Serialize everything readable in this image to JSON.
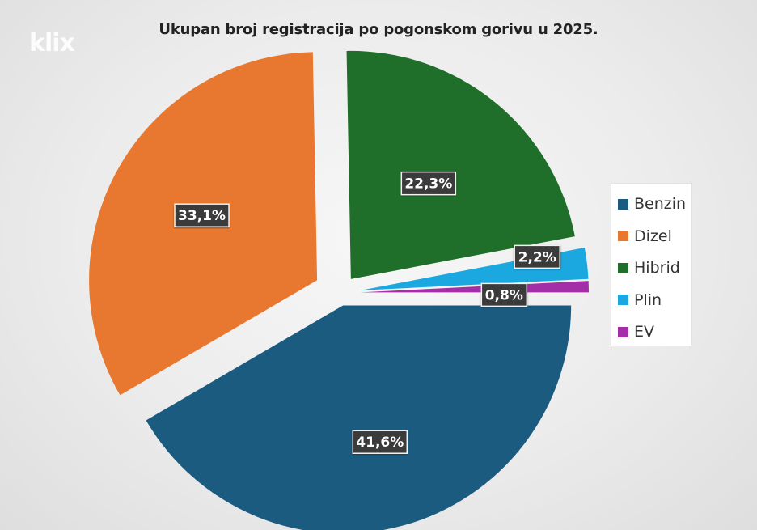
{
  "watermark": "klix",
  "chart_data": {
    "type": "pie",
    "title": "Ukupan broj registracija po pogonskom gorivu u 2025.",
    "slices": [
      {
        "name": "Benzin",
        "value": 41.6,
        "label": "41,6%",
        "color": "#1c5b80"
      },
      {
        "name": "Dizel",
        "value": 33.1,
        "label": "33,1%",
        "color": "#e8782f"
      },
      {
        "name": "Hibrid",
        "value": 22.3,
        "label": "22,3%",
        "color": "#1f6e2a"
      },
      {
        "name": "Plin",
        "value": 2.2,
        "label": "2,2%",
        "color": "#1ba8e0"
      },
      {
        "name": "EV",
        "value": 0.8,
        "label": "0,8%",
        "color": "#a32ea8"
      }
    ],
    "exploded": true,
    "legend_position": "right"
  }
}
